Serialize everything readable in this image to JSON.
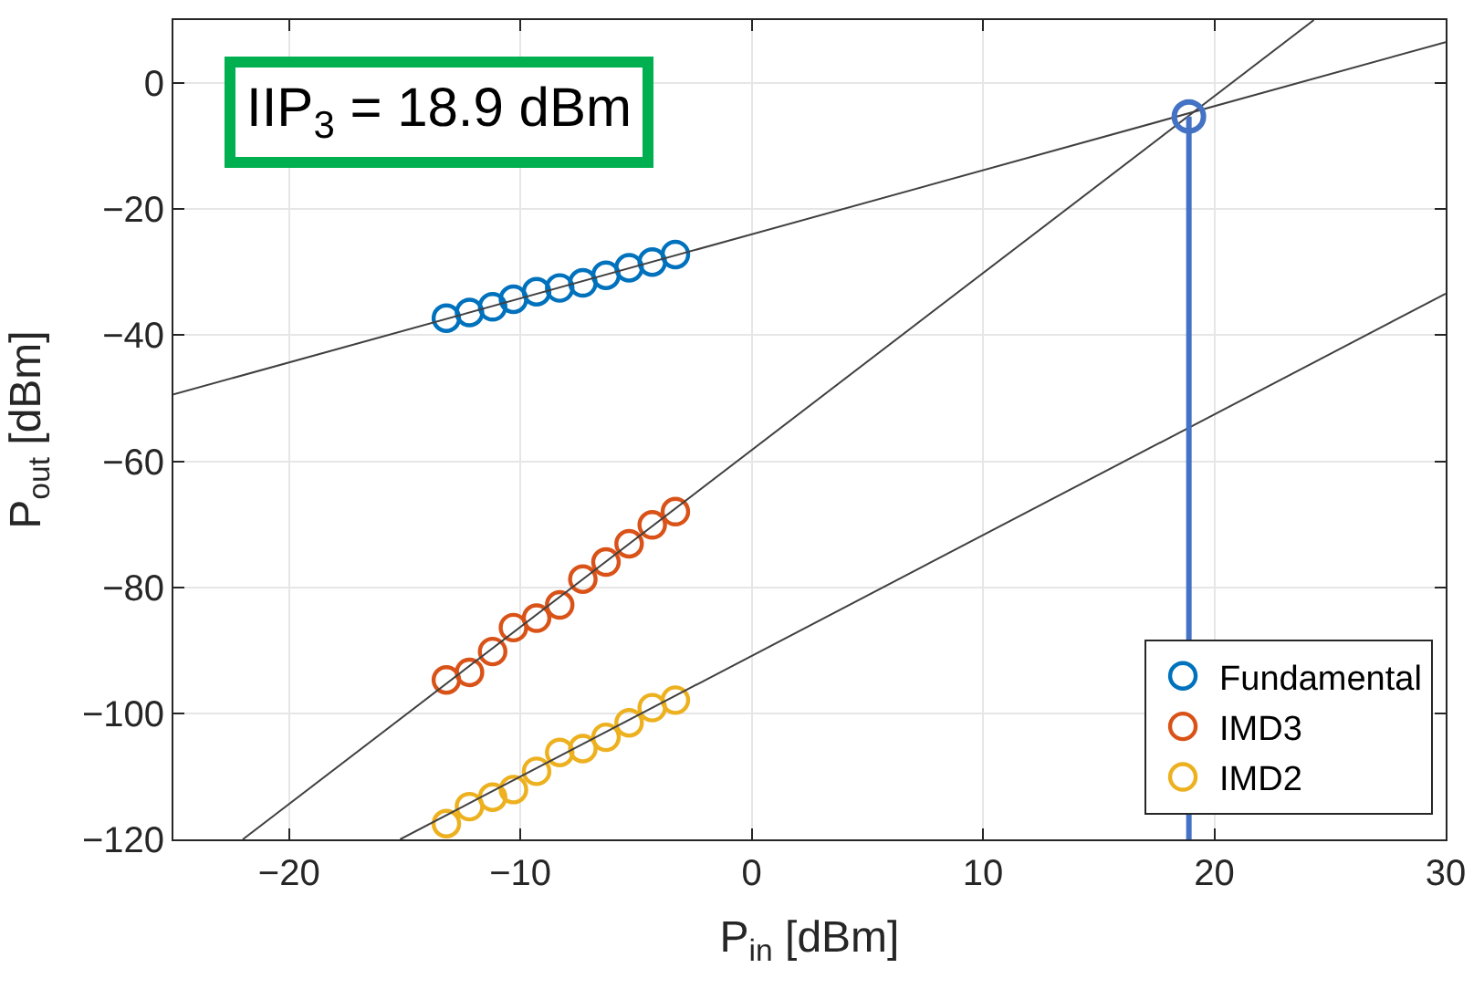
{
  "chart_data": {
    "type": "scatter",
    "xlabel": "P$_{in}$ [dBm]",
    "ylabel": "P$_{out}$ [dBm]",
    "xlim": [
      -25,
      30
    ],
    "ylim": [
      -120,
      10
    ],
    "xticks": [
      -20,
      -10,
      0,
      10,
      20,
      30
    ],
    "yticks": [
      -120,
      -100,
      -80,
      -60,
      -40,
      -20,
      0
    ],
    "grid": true,
    "legend": "bottom right",
    "x": [
      -13.2,
      -12.2,
      -11.2,
      -10.3,
      -9.3,
      -8.3,
      -7.3,
      -6.3,
      -5.3,
      -4.3,
      -3.3
    ],
    "series": [
      {
        "name": "Fundamental",
        "color": "#0072bd",
        "marker": "circle",
        "values": [
          -37.3,
          -36.4,
          -35.5,
          -34.3,
          -33.1,
          -32.5,
          -31.7,
          -30.5,
          -29.3,
          -28.4,
          -27.2
        ]
      },
      {
        "name": "IMD3",
        "color": "#d95319",
        "marker": "circle",
        "values": [
          -94.7,
          -93.5,
          -90.2,
          -86.4,
          -84.9,
          -82.8,
          -78.7,
          -76.0,
          -73.1,
          -70.1,
          -68.0
        ]
      },
      {
        "name": "IMD2",
        "color": "#edb120",
        "marker": "circle",
        "values": [
          -117.5,
          -114.8,
          -113.3,
          -112.1,
          -109.2,
          -106.2,
          -105.6,
          -103.8,
          -101.5,
          -99.1,
          -97.9
        ]
      },
      {
        "type": "line",
        "color": "#404040",
        "marker": "none",
        "x": [
          -25,
          30
        ],
        "values": [
          -49.4,
          6.5
        ]
      },
      {
        "type": "line",
        "color": "#404040",
        "marker": "none",
        "x": [
          -22,
          24.3
        ],
        "values": [
          -120,
          10
        ]
      },
      {
        "type": "line",
        "color": "#404040",
        "marker": "none",
        "x": [
          -15.2,
          30
        ],
        "values": [
          -120,
          -33.4
        ]
      },
      {
        "type": "lollipop",
        "color": "#4472c4",
        "marker": "circle",
        "x": [
          18.9
        ],
        "values": [
          -5.3
        ]
      }
    ],
    "annotations": [
      "IIP$_{3}$ = 18.9 dBm"
    ]
  }
}
